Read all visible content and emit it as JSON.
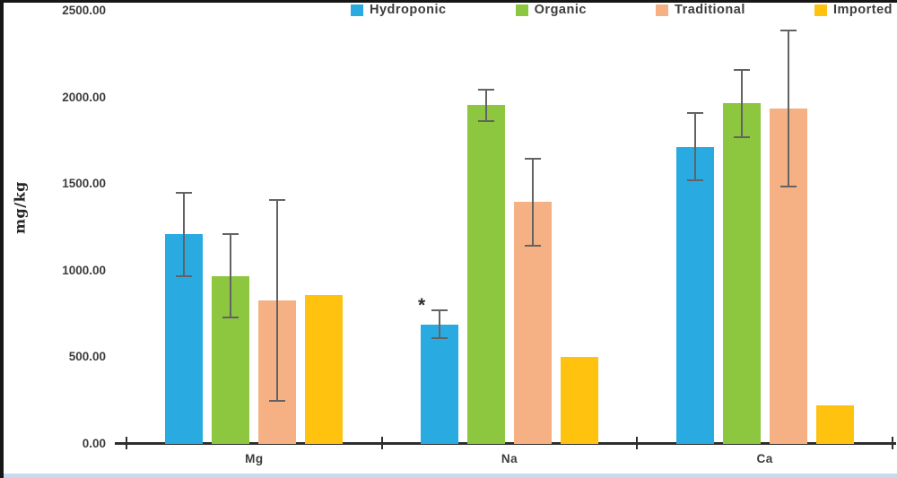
{
  "chart_data": {
    "type": "bar",
    "title": "",
    "xlabel": "",
    "ylabel": "mg/kg",
    "categories": [
      "Mg",
      "Na",
      "Ca"
    ],
    "series": [
      {
        "name": "Hydroponic",
        "color": "#29ABE2",
        "values": [
          1210,
          690,
          1715
        ],
        "errors": [
          240,
          80,
          195
        ],
        "annotations": [
          null,
          "*",
          null
        ]
      },
      {
        "name": "Organic",
        "color": "#8DC63F",
        "values": [
          970,
          1955,
          1965
        ],
        "errors": [
          240,
          90,
          195
        ],
        "annotations": [
          null,
          null,
          null
        ]
      },
      {
        "name": "Traditional",
        "color": "#F5B183",
        "values": [
          830,
          1395,
          1935
        ],
        "errors": [
          580,
          250,
          450
        ],
        "annotations": [
          null,
          null,
          null
        ]
      },
      {
        "name": "Imported",
        "color": "#FFC20E",
        "values": [
          860,
          500,
          220
        ],
        "errors": [
          null,
          null,
          null
        ],
        "annotations": [
          null,
          null,
          null
        ]
      }
    ],
    "ylim": [
      0,
      2500
    ],
    "y_ticks": [
      {
        "value": 0,
        "label": "0.00"
      },
      {
        "value": 500,
        "label": "500.00"
      },
      {
        "value": 1000,
        "label": "1000.00"
      },
      {
        "value": 1500,
        "label": "1500.00"
      },
      {
        "value": 2000,
        "label": "2000.00"
      },
      {
        "value": 2500,
        "label": "2500.00"
      }
    ],
    "grid": false,
    "legend_position": "top",
    "error_bar_color": "#636363",
    "axis_color": "#2e2e2e",
    "text_color": "#3d3d3d"
  }
}
